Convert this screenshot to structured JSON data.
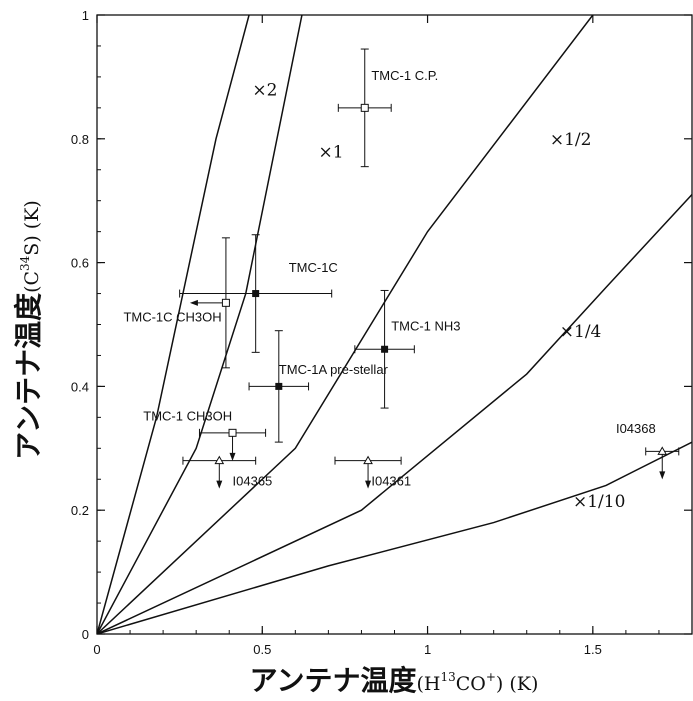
{
  "chart_data": {
    "type": "scatter",
    "x_axis": {
      "label_main": "アンテナ温度",
      "label_paren": "(H",
      "label_sup1": "13",
      "label_mid": "CO",
      "label_sup2": "+",
      "label_end": ") (K)",
      "range": [
        0,
        1.8
      ],
      "ticks": [
        0,
        0.5,
        1,
        1.5
      ],
      "tick_labels": [
        "0",
        "0.5",
        "1",
        "1.5"
      ]
    },
    "y_axis": {
      "label_main": "アンテナ温度",
      "label_paren": "(C",
      "label_sup": "34",
      "label_end": "S)  (K)",
      "range": [
        0,
        1
      ],
      "ticks": [
        0,
        0.2,
        0.4,
        0.6,
        0.8,
        1
      ],
      "tick_labels": [
        "0",
        "0.2",
        "0.4",
        "0.6",
        "0.8",
        "1"
      ]
    },
    "ratio_lines": [
      {
        "label": "×2",
        "points": [
          [
            0,
            0
          ],
          [
            0.18,
            0.35
          ],
          [
            0.36,
            0.8
          ],
          [
            0.46,
            1.0
          ]
        ],
        "label_at": [
          0.47,
          0.87
        ]
      },
      {
        "label": "×1",
        "points": [
          [
            0,
            0
          ],
          [
            0.3,
            0.3
          ],
          [
            0.45,
            0.55
          ],
          [
            0.62,
            1.0
          ]
        ],
        "label_at": [
          0.67,
          0.77
        ]
      },
      {
        "label": "×1/2",
        "points": [
          [
            0,
            0
          ],
          [
            0.6,
            0.3
          ],
          [
            1.0,
            0.65
          ],
          [
            1.5,
            1.0
          ]
        ],
        "label_at": [
          1.37,
          0.79
        ]
      },
      {
        "label": "×1/4",
        "points": [
          [
            0,
            0
          ],
          [
            0.8,
            0.2
          ],
          [
            1.3,
            0.42
          ],
          [
            1.54,
            0.56
          ],
          [
            1.8,
            0.71
          ]
        ],
        "label_at": [
          1.4,
          0.48
        ]
      },
      {
        "label": "×1/10",
        "points": [
          [
            0,
            0
          ],
          [
            0.7,
            0.11
          ],
          [
            1.2,
            0.18
          ],
          [
            1.54,
            0.24
          ],
          [
            1.8,
            0.31
          ]
        ],
        "label_at": [
          1.44,
          0.205
        ]
      }
    ],
    "points": [
      {
        "label": "TMC-1 C.P.",
        "x": 0.81,
        "y": 0.85,
        "xerr": 0.08,
        "yerr": 0.095,
        "marker": "open-square",
        "label_at": [
          0.83,
          0.895
        ],
        "label_anchor": "start"
      },
      {
        "label": "TMC-1C",
        "x": 0.48,
        "y": 0.55,
        "xerr": 0.23,
        "yerr": 0.095,
        "marker": "filled-square",
        "label_at": [
          0.58,
          0.585
        ],
        "label_anchor": "start"
      },
      {
        "label": "TMC-1C CH3OH",
        "x": 0.39,
        "y": 0.535,
        "xerr": 0.0,
        "yerr": 0.105,
        "marker": "open-square",
        "upper_limit_x": true,
        "label_at": [
          0.08,
          0.505
        ],
        "label_anchor": "start"
      },
      {
        "label": "TMC-1 NH3",
        "x": 0.87,
        "y": 0.46,
        "xerr": 0.09,
        "yerr": 0.095,
        "marker": "filled-square",
        "label_at": [
          0.89,
          0.49
        ],
        "label_anchor": "start"
      },
      {
        "label": "TMC-1A pre-stellar",
        "x": 0.55,
        "y": 0.4,
        "xerr": 0.09,
        "yerr": 0.09,
        "marker": "filled-square",
        "label_at": [
          0.55,
          0.42
        ],
        "label_anchor": "start"
      },
      {
        "label": "TMC-1 CH3OH",
        "x": 0.41,
        "y": 0.325,
        "xerr": 0.1,
        "yerr": 0.0,
        "marker": "open-square",
        "upper_limit_y": true,
        "label_at": [
          0.14,
          0.345
        ],
        "label_anchor": "start"
      },
      {
        "label": "I04365",
        "x": 0.37,
        "y": 0.28,
        "xerr": 0.11,
        "yerr": 0.0,
        "marker": "open-triangle",
        "upper_limit_y": true,
        "label_at": [
          0.41,
          0.24
        ],
        "label_anchor": "start"
      },
      {
        "label": "I04361",
        "x": 0.82,
        "y": 0.28,
        "xerr": 0.1,
        "yerr": 0.0,
        "marker": "open-triangle",
        "upper_limit_y": true,
        "label_at": [
          0.83,
          0.24
        ],
        "label_anchor": "start"
      },
      {
        "label": "I04368",
        "x": 1.71,
        "y": 0.295,
        "xerr": 0.05,
        "yerr": 0.0,
        "marker": "open-triangle",
        "upper_limit_y": true,
        "label_at": [
          1.57,
          0.325
        ],
        "label_anchor": "start"
      }
    ]
  }
}
